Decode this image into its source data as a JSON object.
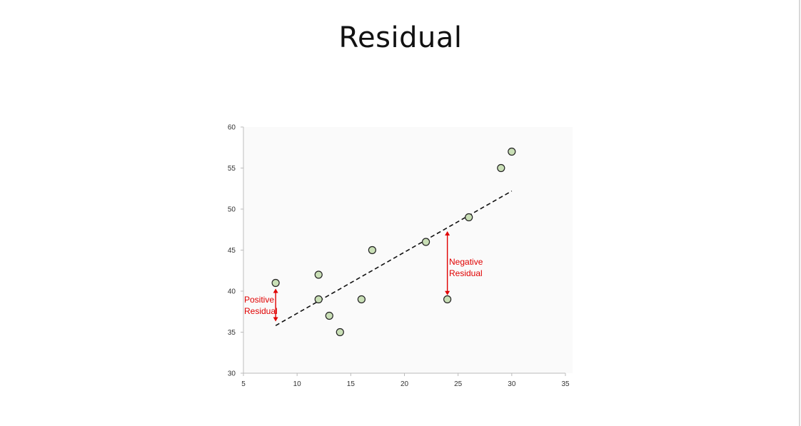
{
  "slide": {
    "title": "Residual"
  },
  "chart_data": {
    "type": "scatter",
    "title": "",
    "xlabel": "",
    "ylabel": "",
    "xlim": [
      5,
      35
    ],
    "ylim": [
      30,
      60
    ],
    "x_ticks": [
      5,
      10,
      15,
      20,
      25,
      30,
      35
    ],
    "y_ticks": [
      30,
      35,
      40,
      45,
      50,
      55,
      60
    ],
    "grid": false,
    "points": [
      {
        "x": 8,
        "y": 41
      },
      {
        "x": 12,
        "y": 42
      },
      {
        "x": 12,
        "y": 39
      },
      {
        "x": 13,
        "y": 37
      },
      {
        "x": 14,
        "y": 35
      },
      {
        "x": 16,
        "y": 39
      },
      {
        "x": 17,
        "y": 45
      },
      {
        "x": 22,
        "y": 46
      },
      {
        "x": 24,
        "y": 39
      },
      {
        "x": 26,
        "y": 49
      },
      {
        "x": 29,
        "y": 55
      },
      {
        "x": 30,
        "y": 57
      }
    ],
    "trendline": {
      "x1": 8,
      "y1": 35.8,
      "x2": 30,
      "y2": 52.2,
      "style": "dashed",
      "color": "#111111"
    },
    "annotations": [
      {
        "lines": [
          "Positive",
          "Residual"
        ],
        "arrow_x": 8,
        "arrow_y_from": 40.3,
        "arrow_y_to": 36.3
      },
      {
        "lines": [
          "Negative",
          "Residual"
        ],
        "arrow_x": 24,
        "arrow_y_from": 47.3,
        "arrow_y_to": 39.5
      }
    ],
    "colors": {
      "point_fill": "#c9dfb6",
      "point_stroke": "#222222",
      "annotation": "#e00000",
      "axis": "#bbbbbb"
    }
  }
}
